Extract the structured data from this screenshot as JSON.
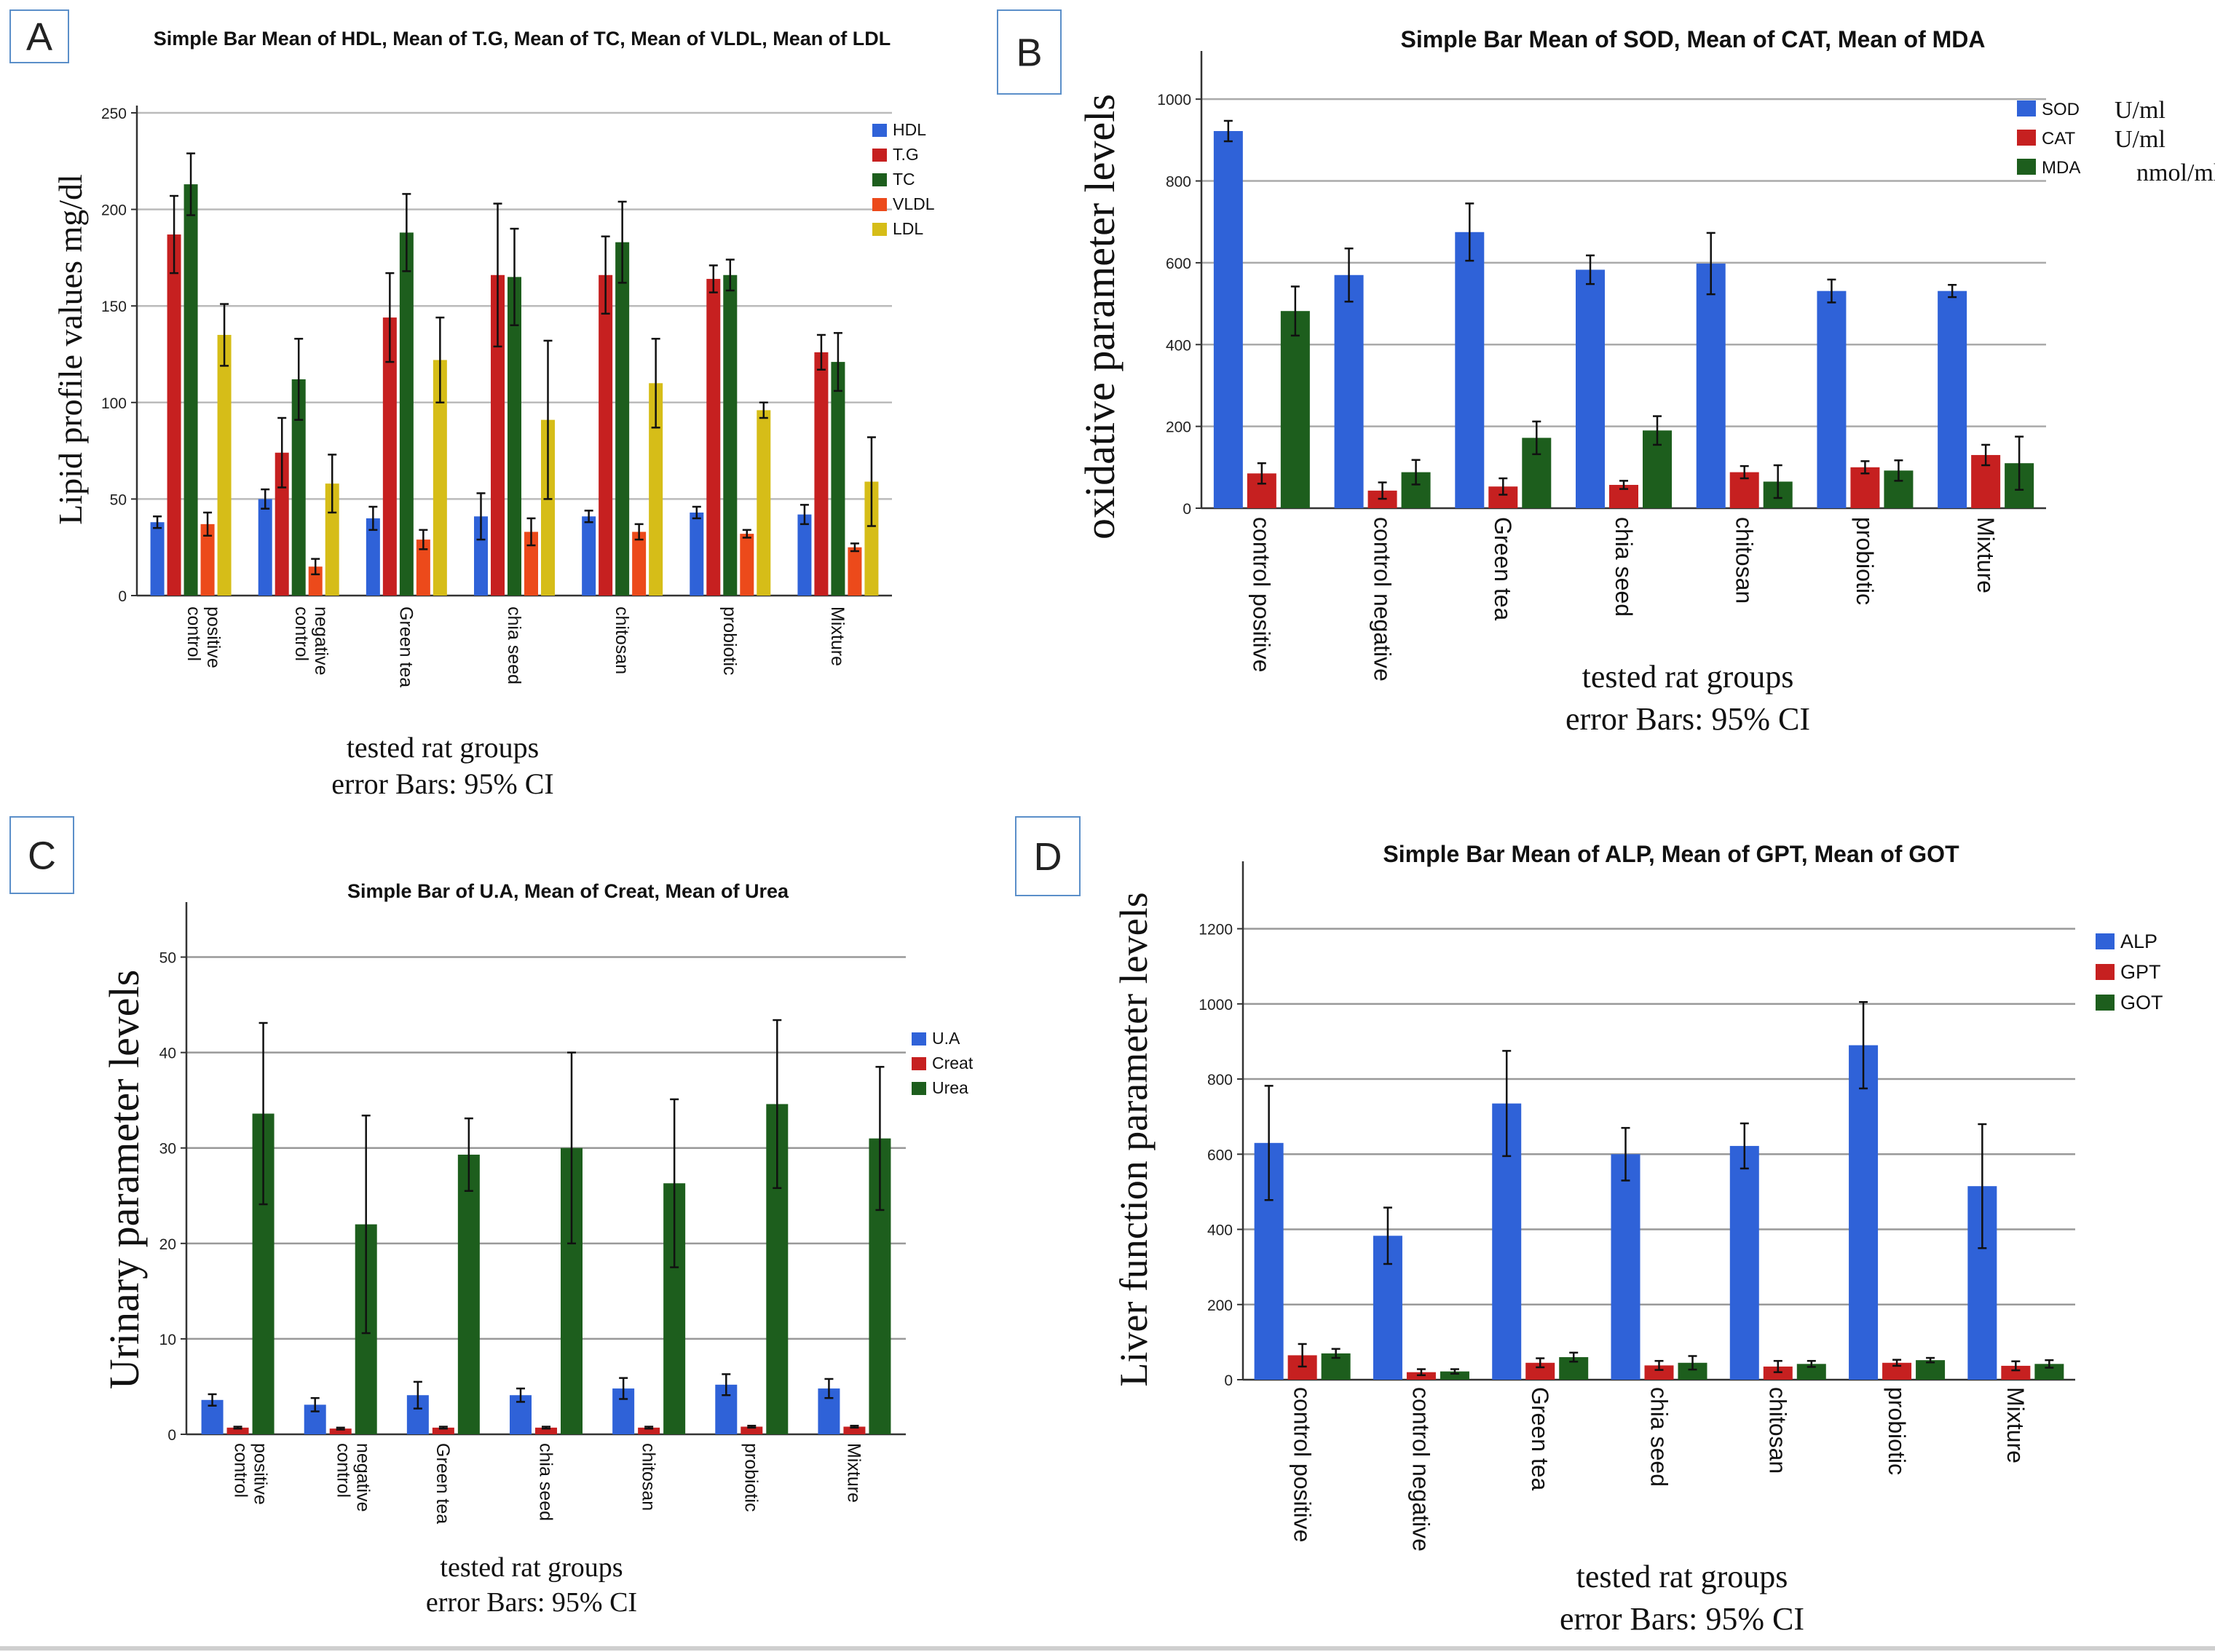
{
  "chart_data": [
    {
      "panel": "A",
      "type": "bar",
      "title": "Simple Bar Mean of HDL, Mean of T.G, Mean of TC, Mean of VLDL, Mean of LDL",
      "ylabel": "Lipid profile values mg/dl",
      "xlabel": "tested rat groups",
      "note": "error Bars: 95% CI",
      "ylim": [
        0,
        250
      ],
      "yticks": [
        0,
        50,
        100,
        150,
        200,
        250
      ],
      "categories": [
        "control positive",
        "control negative",
        "Green tea",
        "chia seed",
        "chitosan",
        "probiotic",
        "Mixture"
      ],
      "series": [
        {
          "name": "HDL",
          "color": "#2f62d8",
          "values": [
            38,
            50,
            40,
            41,
            41,
            43,
            42
          ],
          "errors": [
            3,
            5,
            6,
            12,
            3,
            3,
            5
          ]
        },
        {
          "name": "T.G",
          "color": "#c62020",
          "values": [
            187,
            74,
            144,
            166,
            166,
            164,
            126
          ],
          "errors": [
            20,
            18,
            23,
            37,
            20,
            7,
            9
          ]
        },
        {
          "name": "TC",
          "color": "#1d5e1d",
          "values": [
            213,
            112,
            188,
            165,
            183,
            166,
            121
          ],
          "errors": [
            16,
            21,
            20,
            25,
            21,
            8,
            15
          ]
        },
        {
          "name": "VLDL",
          "color": "#ec4a1b",
          "values": [
            37,
            15,
            29,
            33,
            33,
            32,
            25
          ],
          "errors": [
            6,
            4,
            5,
            7,
            4,
            2,
            2
          ]
        },
        {
          "name": "LDL",
          "color": "#d6bd18",
          "values": [
            135,
            58,
            122,
            91,
            110,
            96,
            59
          ],
          "errors": [
            16,
            15,
            22,
            41,
            23,
            4,
            23
          ]
        }
      ]
    },
    {
      "panel": "B",
      "type": "bar",
      "title": "Simple Bar Mean of SOD, Mean of CAT, Mean of MDA",
      "ylabel": "oxidative parameter levels",
      "xlabel": "tested rat groups",
      "note": "error Bars: 95% CI",
      "ylim": [
        0,
        1100
      ],
      "yticks": [
        0,
        200,
        400,
        600,
        800,
        1000
      ],
      "categories": [
        "control positive",
        "control negative",
        "Green tea",
        "chia seed",
        "chitosan",
        "probiotic",
        "Mixture"
      ],
      "series": [
        {
          "name": "SOD",
          "unit": "U/ml",
          "color": "#2f62d8",
          "values": [
            922,
            570,
            675,
            583,
            598,
            531,
            531
          ],
          "errors": [
            25,
            65,
            70,
            35,
            75,
            28,
            15
          ]
        },
        {
          "name": "CAT",
          "unit": "U/ml",
          "color": "#c62020",
          "values": [
            85,
            43,
            53,
            57,
            88,
            100,
            130
          ],
          "errors": [
            25,
            20,
            20,
            10,
            15,
            15,
            25
          ]
        },
        {
          "name": "MDA",
          "unit": "nmol/ml",
          "color": "#1d5e1d",
          "values": [
            482,
            88,
            172,
            190,
            65,
            92,
            110
          ],
          "errors": [
            60,
            30,
            40,
            35,
            40,
            25,
            65
          ]
        }
      ]
    },
    {
      "panel": "C",
      "type": "bar",
      "title": "Simple Bar of U.A, Mean of Creat, Mean of Urea",
      "ylabel": "Urinary parameter levels",
      "xlabel": "tested rat groups",
      "note": "error Bars: 95% CI",
      "ylim": [
        0,
        55
      ],
      "yticks": [
        0,
        10,
        20,
        30,
        40,
        50
      ],
      "categories": [
        "control positive",
        "control negative",
        "Green tea",
        "chia seed",
        "chitosan",
        "probiotic",
        "Mixture"
      ],
      "series": [
        {
          "name": "U.A",
          "color": "#2f62d8",
          "values": [
            3.6,
            3.1,
            4.1,
            4.1,
            4.8,
            5.2,
            4.8
          ],
          "errors": [
            0.6,
            0.7,
            1.4,
            0.7,
            1.1,
            1.1,
            1.0
          ]
        },
        {
          "name": "Creat",
          "color": "#c62020",
          "values": [
            0.7,
            0.6,
            0.7,
            0.7,
            0.7,
            0.8,
            0.8
          ],
          "errors": [
            0.1,
            0.1,
            0.1,
            0.1,
            0.1,
            0.1,
            0.1
          ]
        },
        {
          "name": "Urea",
          "color": "#1d5e1d",
          "values": [
            33.6,
            22.0,
            29.3,
            30.0,
            26.3,
            34.6,
            31.0
          ],
          "errors": [
            9.5,
            11.4,
            3.8,
            10.0,
            8.8,
            8.8,
            7.5
          ]
        }
      ]
    },
    {
      "panel": "D",
      "type": "bar",
      "title": "Simple Bar Mean of ALP, Mean of GPT, Mean of GOT",
      "ylabel": "Liver function parameter levels",
      "xlabel": "tested rat groups",
      "note": "error Bars: 95% CI",
      "ylim": [
        0,
        1360
      ],
      "yticks": [
        0,
        200,
        400,
        600,
        800,
        1000,
        1200
      ],
      "categories": [
        "control positive",
        "control negative",
        "Green tea",
        "chia seed",
        "chitosan",
        "probiotic",
        "Mixture"
      ],
      "series": [
        {
          "name": "ALP",
          "color": "#2f62d8",
          "values": [
            630,
            383,
            735,
            600,
            622,
            890,
            515
          ],
          "errors": [
            152,
            75,
            140,
            70,
            60,
            115,
            165
          ]
        },
        {
          "name": "GPT",
          "color": "#c62020",
          "values": [
            65,
            20,
            45,
            38,
            35,
            45,
            37
          ],
          "errors": [
            30,
            8,
            12,
            12,
            15,
            8,
            12
          ]
        },
        {
          "name": "GOT",
          "color": "#1d5e1d",
          "values": [
            70,
            22,
            60,
            45,
            42,
            52,
            42
          ],
          "errors": [
            12,
            6,
            12,
            18,
            8,
            6,
            10
          ]
        }
      ]
    }
  ]
}
